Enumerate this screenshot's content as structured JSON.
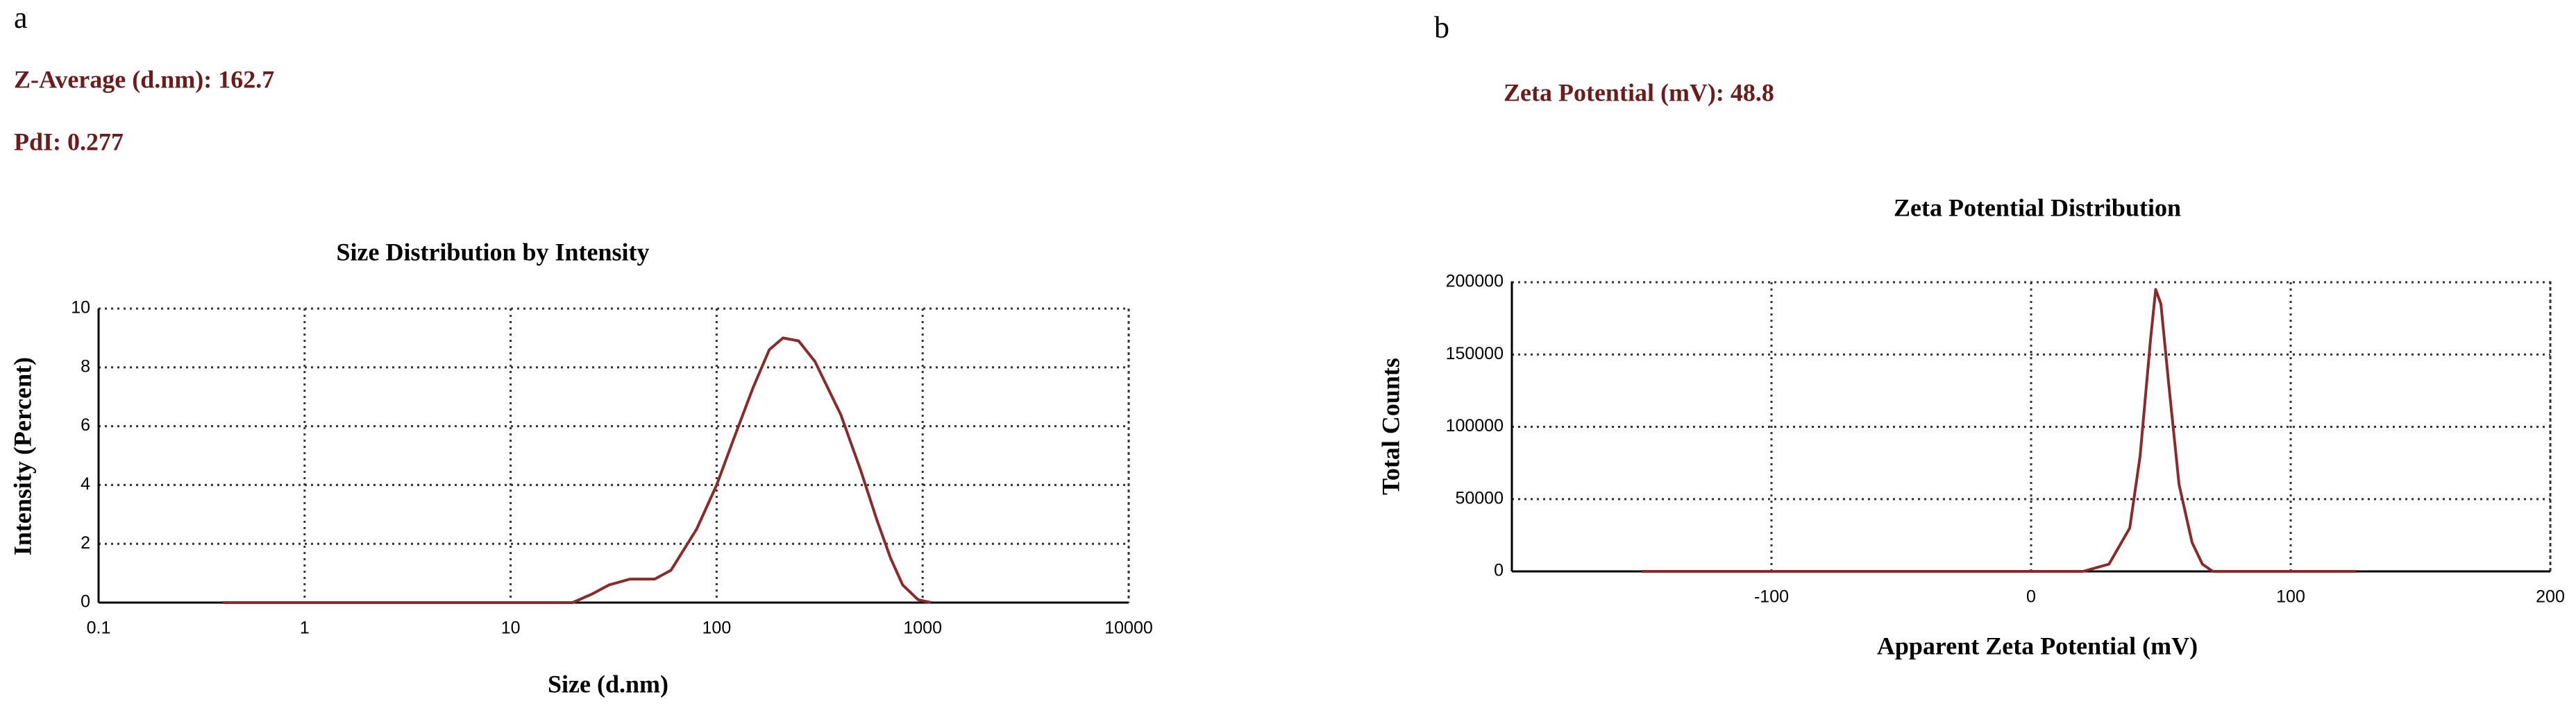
{
  "chart_data": [
    {
      "type": "line",
      "panel_label": "a",
      "annotations": [
        "Z-Average (d.nm): 162.7",
        "PdI: 0.277"
      ],
      "title": "Size Distribution by Intensity",
      "x_label": "Size (d.nm)",
      "y_label": "Intensity (Percent)",
      "x_scale": "log",
      "grid": true,
      "color": "#8b2a2a",
      "x": [
        0.4,
        1,
        10,
        20,
        25,
        30,
        38,
        50,
        60,
        80,
        100,
        120,
        150,
        180,
        210,
        250,
        300,
        400,
        500,
        600,
        700,
        800,
        950,
        1100
      ],
      "values": [
        0,
        0,
        0,
        0,
        0.3,
        0.6,
        0.8,
        0.8,
        1.1,
        2.5,
        4.0,
        5.5,
        7.3,
        8.6,
        9.0,
        8.9,
        8.2,
        6.4,
        4.5,
        2.8,
        1.5,
        0.6,
        0.1,
        0
      ],
      "xlim": [
        0.1,
        10000
      ],
      "xticks": [
        0.1,
        1,
        10,
        100,
        1000,
        10000
      ],
      "ylim": [
        0,
        10
      ],
      "yticks": [
        0,
        2,
        4,
        6,
        8,
        10
      ]
    },
    {
      "type": "line",
      "panel_label": "b",
      "annotations": [
        "Zeta Potential (mV): 48.8"
      ],
      "title": "Zeta Potential Distribution",
      "x_label": "Apparent Zeta Potential (mV)",
      "y_label": "Total Counts",
      "x_scale": "linear",
      "grid": true,
      "color": "#8b2a2a",
      "x": [
        -150,
        20,
        30,
        38,
        42,
        46,
        48,
        50,
        53,
        57,
        62,
        66,
        70,
        125
      ],
      "values": [
        0,
        0,
        5000,
        30000,
        80000,
        160000,
        195000,
        185000,
        130000,
        60000,
        20000,
        5000,
        0,
        0
      ],
      "xlim": [
        -200,
        200
      ],
      "xticks": [
        -100,
        0,
        100,
        200
      ],
      "ylim": [
        0,
        200000
      ],
      "yticks": [
        0,
        50000,
        100000,
        150000,
        200000
      ]
    }
  ]
}
